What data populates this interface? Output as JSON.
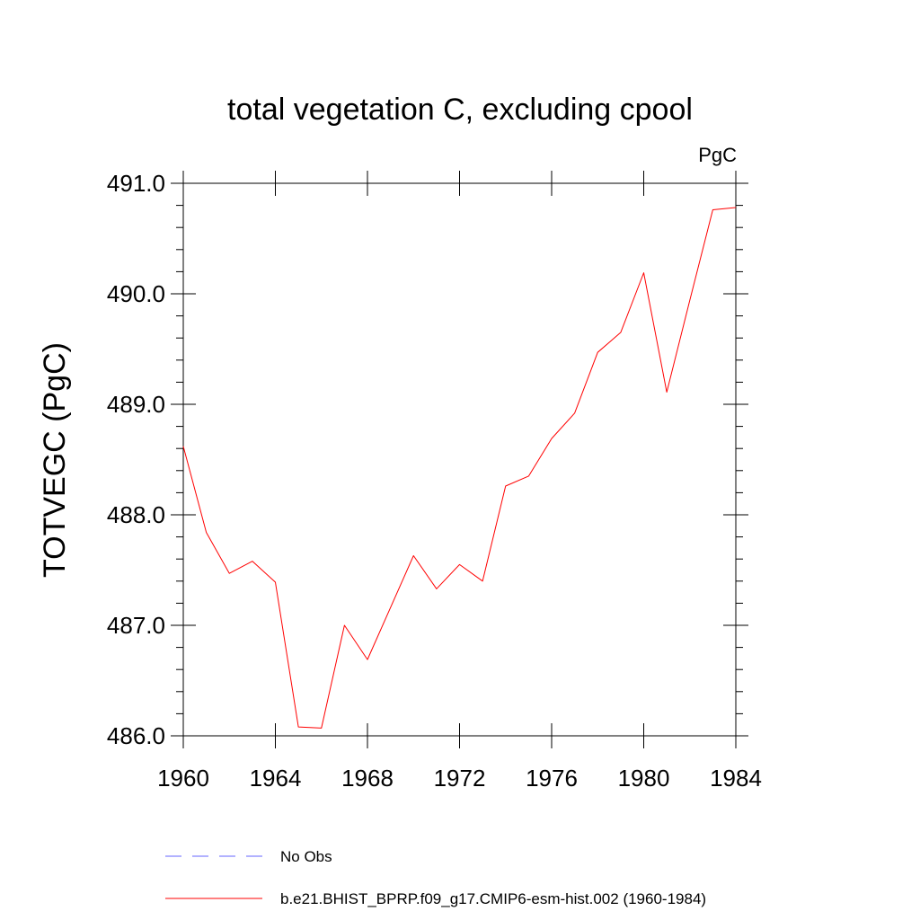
{
  "chart_data": {
    "type": "line",
    "title": "total vegetation C, excluding cpool",
    "units_label": "PgC",
    "ylabel": "TOTVEGC  (PgC)",
    "xlabel": "",
    "xlim": [
      1960,
      1984
    ],
    "ylim": [
      486.0,
      491.0
    ],
    "x_ticks": [
      1960,
      1964,
      1968,
      1972,
      1976,
      1980,
      1984
    ],
    "x_tick_labels": [
      "1960",
      "1964",
      "1968",
      "1972",
      "1976",
      "1980",
      "1984"
    ],
    "y_ticks": [
      486.0,
      487.0,
      488.0,
      489.0,
      490.0,
      491.0
    ],
    "y_tick_labels": [
      "486.0",
      "487.0",
      "488.0",
      "489.0",
      "490.0",
      "491.0"
    ],
    "grid": false,
    "legend_position": "bottom-center",
    "series": [
      {
        "name": "b.e21.BHIST_BPRP.f09_g17.CMIP6-esm-hist.002 (1960-1984)",
        "color": "#ff0000",
        "style": "solid",
        "x": [
          1960,
          1961,
          1962,
          1963,
          1964,
          1965,
          1966,
          1967,
          1968,
          1969,
          1970,
          1971,
          1972,
          1973,
          1974,
          1975,
          1976,
          1977,
          1978,
          1979,
          1980,
          1981,
          1982,
          1983,
          1984
        ],
        "values": [
          488.62,
          487.84,
          487.47,
          487.58,
          487.39,
          486.08,
          486.07,
          487.0,
          486.69,
          487.16,
          487.63,
          487.33,
          487.55,
          487.4,
          488.26,
          488.35,
          488.69,
          488.92,
          489.47,
          489.65,
          490.19,
          489.11,
          489.94,
          490.76,
          490.78
        ]
      }
    ],
    "legend": [
      {
        "label": "No Obs",
        "color": "#6666ff",
        "style": "dashed"
      },
      {
        "label": "b.e21.BHIST_BPRP.f09_g17.CMIP6-esm-hist.002 (1960-1984)",
        "color": "#ff0000",
        "style": "solid"
      }
    ]
  }
}
